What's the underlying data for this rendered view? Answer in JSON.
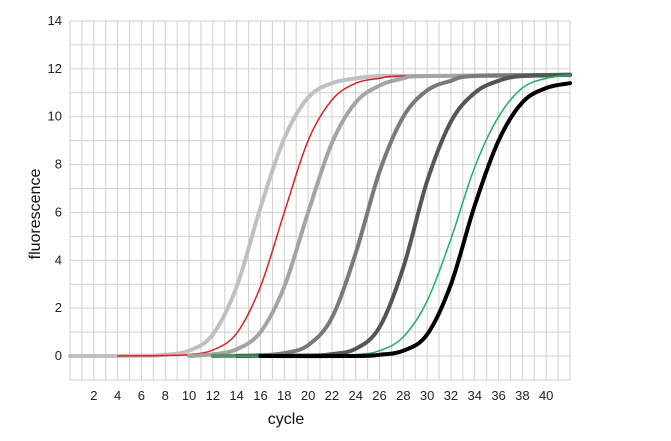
{
  "chart_data": {
    "type": "line",
    "title": "",
    "xlabel": "cycle",
    "ylabel": "fluorescence",
    "xlim": [
      0,
      42
    ],
    "ylim": [
      0,
      14
    ],
    "x_ticks": [
      2,
      4,
      6,
      8,
      10,
      12,
      14,
      16,
      18,
      20,
      22,
      24,
      26,
      28,
      30,
      32,
      34,
      36,
      38,
      40
    ],
    "y_ticks": [
      0,
      2,
      4,
      6,
      8,
      10,
      12,
      14
    ],
    "grid": true,
    "legend": "none",
    "series": [
      {
        "color": "#c0c0c0",
        "width": 4,
        "points": [
          [
            0,
            0
          ],
          [
            6,
            0.01
          ],
          [
            8,
            0.05
          ],
          [
            10,
            0.22
          ],
          [
            12,
            0.9
          ],
          [
            14,
            2.9
          ],
          [
            16,
            6.2
          ],
          [
            18,
            9.1
          ],
          [
            20,
            10.8
          ],
          [
            22,
            11.4
          ],
          [
            24,
            11.6
          ],
          [
            26,
            11.7
          ],
          [
            30,
            11.7
          ],
          [
            40,
            11.7
          ]
        ]
      },
      {
        "color": "#e02020",
        "width": 1.5,
        "points": [
          [
            4,
            0
          ],
          [
            8,
            0.02
          ],
          [
            10,
            0.06
          ],
          [
            12,
            0.25
          ],
          [
            14,
            0.95
          ],
          [
            16,
            2.9
          ],
          [
            18,
            6.0
          ],
          [
            20,
            9.0
          ],
          [
            22,
            10.7
          ],
          [
            24,
            11.4
          ],
          [
            26,
            11.6
          ],
          [
            28,
            11.7
          ],
          [
            37.5,
            11.75
          ]
        ]
      },
      {
        "color": "#a4a4a4",
        "width": 4,
        "points": [
          [
            10,
            0
          ],
          [
            12,
            0.07
          ],
          [
            14,
            0.28
          ],
          [
            16,
            1.0
          ],
          [
            18,
            2.9
          ],
          [
            20,
            6.0
          ],
          [
            22,
            8.9
          ],
          [
            24,
            10.6
          ],
          [
            26,
            11.3
          ],
          [
            28,
            11.6
          ],
          [
            30,
            11.7
          ],
          [
            42,
            11.75
          ]
        ]
      },
      {
        "color": "#7a7a7a",
        "width": 4,
        "points": [
          [
            12,
            0
          ],
          [
            16,
            0.03
          ],
          [
            18,
            0.12
          ],
          [
            20,
            0.45
          ],
          [
            22,
            1.6
          ],
          [
            24,
            4.3
          ],
          [
            26,
            7.7
          ],
          [
            28,
            10.0
          ],
          [
            30,
            11.1
          ],
          [
            32,
            11.5
          ],
          [
            34,
            11.7
          ],
          [
            42,
            11.75
          ]
        ]
      },
      {
        "color": "#555555",
        "width": 4,
        "points": [
          [
            14,
            0
          ],
          [
            20,
            0.02
          ],
          [
            22,
            0.08
          ],
          [
            24,
            0.3
          ],
          [
            26,
            1.2
          ],
          [
            28,
            3.7
          ],
          [
            30,
            7.3
          ],
          [
            32,
            9.8
          ],
          [
            34,
            11.0
          ],
          [
            36,
            11.5
          ],
          [
            38,
            11.7
          ],
          [
            42,
            11.75
          ]
        ]
      },
      {
        "color": "#20b060",
        "width": 1.5,
        "points": [
          [
            12,
            0
          ],
          [
            20,
            0
          ],
          [
            24,
            0.06
          ],
          [
            26,
            0.22
          ],
          [
            28,
            0.8
          ],
          [
            30,
            2.3
          ],
          [
            32,
            4.9
          ],
          [
            34,
            7.9
          ],
          [
            36,
            10.0
          ],
          [
            38,
            11.2
          ],
          [
            40,
            11.6
          ],
          [
            42,
            11.75
          ]
        ]
      },
      {
        "color": "#000000",
        "width": 4,
        "points": [
          [
            16,
            0
          ],
          [
            24,
            0
          ],
          [
            26,
            0.05
          ],
          [
            28,
            0.22
          ],
          [
            30,
            0.9
          ],
          [
            32,
            3.0
          ],
          [
            34,
            6.3
          ],
          [
            36,
            9.0
          ],
          [
            38,
            10.6
          ],
          [
            40,
            11.2
          ],
          [
            42,
            11.4
          ]
        ]
      }
    ]
  }
}
